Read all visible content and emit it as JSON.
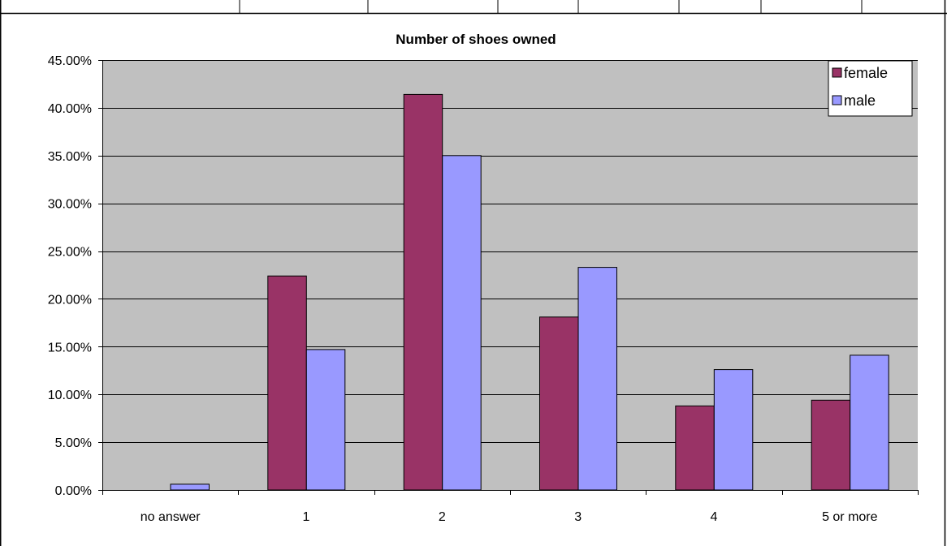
{
  "colors": {
    "female": "#993366",
    "male": "#9999ff",
    "plot_background": "#c0c0c0",
    "gridline": "#000000",
    "frame": "#000000"
  },
  "chart_data": {
    "type": "bar",
    "title": "Number of shoes owned",
    "xlabel": "",
    "ylabel": "",
    "categories": [
      "no answer",
      "1",
      "2",
      "3",
      "4",
      "5 or more"
    ],
    "series": [
      {
        "name": "female",
        "values": [
          0.0,
          22.4,
          41.4,
          18.1,
          8.8,
          9.4
        ]
      },
      {
        "name": "male",
        "values": [
          0.6,
          14.7,
          35.0,
          23.3,
          12.6,
          14.1
        ]
      }
    ],
    "ylim": [
      0,
      45
    ],
    "yticks": [
      "0.00%",
      "5.00%",
      "10.00%",
      "15.00%",
      "20.00%",
      "25.00%",
      "30.00%",
      "35.00%",
      "40.00%",
      "45.00%"
    ],
    "grid": true,
    "legend": "top-right"
  }
}
